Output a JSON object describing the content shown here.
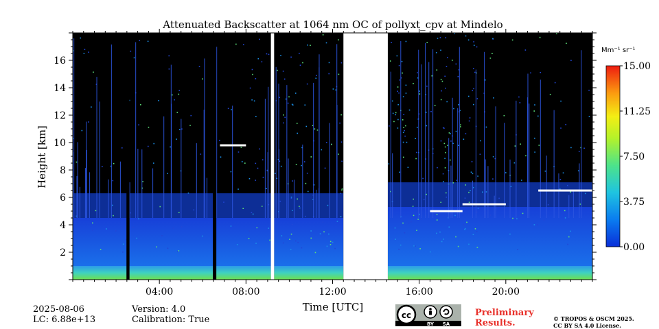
{
  "chart_data": {
    "type": "heatmap",
    "title": "Attenuated Backscatter at 1064 nm OC of pollyxt_cpv at Mindelo",
    "xlabel": "Time [UTC]",
    "ylabel": "Height [km]",
    "xlim": [
      0,
      24
    ],
    "ylim": [
      0,
      18
    ],
    "x_ticks": [
      {
        "value": 4,
        "label": "04:00"
      },
      {
        "value": 8,
        "label": "08:00"
      },
      {
        "value": 12,
        "label": "12:00"
      },
      {
        "value": 16,
        "label": "16:00"
      },
      {
        "value": 20,
        "label": "20:00"
      }
    ],
    "y_ticks": [
      {
        "value": 2,
        "label": "2"
      },
      {
        "value": 4,
        "label": "4"
      },
      {
        "value": 6,
        "label": "6"
      },
      {
        "value": 8,
        "label": "8"
      },
      {
        "value": 10,
        "label": "10"
      },
      {
        "value": 12,
        "label": "12"
      },
      {
        "value": 14,
        "label": "14"
      },
      {
        "value": 16,
        "label": "16"
      }
    ],
    "colorbar": {
      "unit_label": "Mm⁻¹ sr⁻¹",
      "min": 0.0,
      "max": 15.0,
      "ticks": [
        {
          "value": 0,
          "label": "0.00"
        },
        {
          "value": 3.75,
          "label": "3.75"
        },
        {
          "value": 7.5,
          "label": "7.50"
        },
        {
          "value": 11.25,
          "label": "11.25"
        },
        {
          "value": 15,
          "label": "15.00"
        }
      ],
      "colormap": "jet"
    },
    "no_data_intervals_utc_hours": [
      [
        9.15,
        9.3
      ],
      [
        12.5,
        14.55
      ]
    ],
    "features": {
      "surface_layer_top_km": 1.0,
      "aerosol_layer_top_km": 4.5,
      "cloud_layers": [
        {
          "start_h": 6.8,
          "end_h": 8.0,
          "height_km": 9.8
        },
        {
          "start_h": 16.5,
          "end_h": 18.0,
          "height_km": 5.0
        },
        {
          "start_h": 18.0,
          "end_h": 20.0,
          "height_km": 5.5
        },
        {
          "start_h": 21.5,
          "end_h": 24.0,
          "height_km": 6.5
        }
      ]
    }
  },
  "info": {
    "date": "2025-08-06",
    "lc": "LC: 6.88e+13",
    "version": "Version: 4.0",
    "calibration": "Calibration: True",
    "preliminary_line1": "Preliminary",
    "preliminary_line2": "Results.",
    "copyright_line1": "© TROPOS & OSCM 2025.",
    "copyright_line2": "CC BY SA 4.0 License.",
    "license_badge_text": [
      "BY",
      "SA"
    ]
  }
}
